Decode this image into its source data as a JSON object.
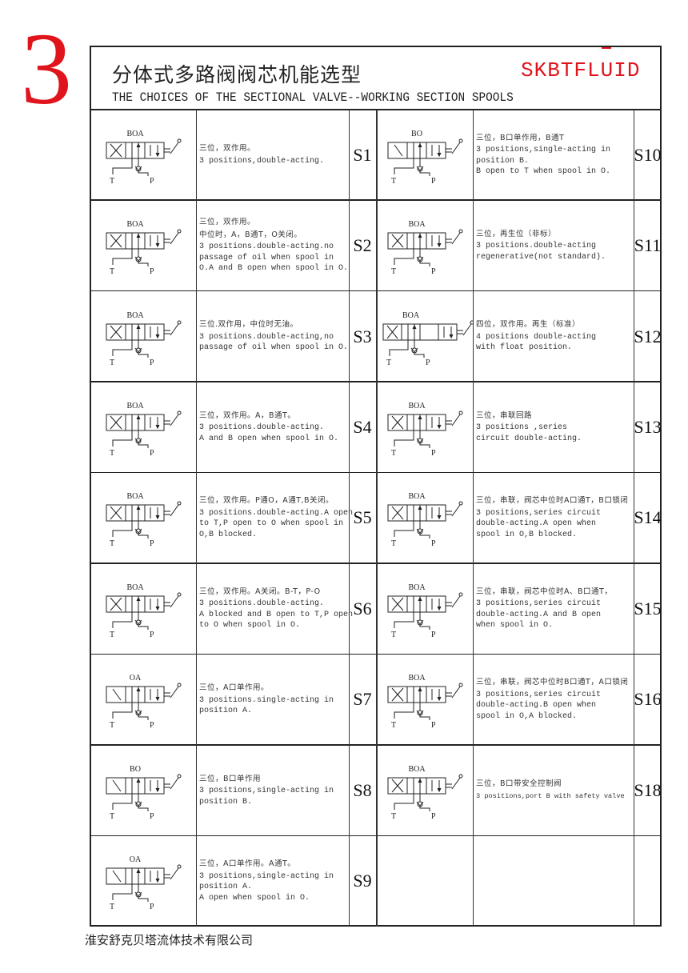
{
  "page_number": "3",
  "header": {
    "title_cn": "分体式多路阀阀芯机能选型",
    "title_en": "THE CHOICES OF THE SECTIONAL VALVE--WORKING SECTION SPOOLS",
    "brand": "SKBTFLUID",
    "brand_color": "#e0141c"
  },
  "left_column": [
    {
      "code": "S1",
      "symbol_label": "BOA",
      "lines": [
        "三位，双作用。",
        "3 positions,double-acting."
      ]
    },
    {
      "code": "S2",
      "symbol_label": "BOA",
      "lines": [
        "三位，双作用。",
        "中位时，A，B通T，O关闭。",
        "3 positions.double-acting.no",
        "passage of oil when spool in",
        "O.A and B open when spool in O."
      ]
    },
    {
      "code": "S3",
      "symbol_label": "BOA",
      "lines": [
        "三位.双作用，中位时无油。",
        "3 positions.double-acting,no",
        "passage of oil when spool in O."
      ]
    },
    {
      "code": "S4",
      "symbol_label": "BOA",
      "lines": [
        "三位，双作用。A，B通T。",
        "3 positions.double-acting.",
        "A and B open when spool in O."
      ]
    },
    {
      "code": "S5",
      "symbol_label": "BOA",
      "lines": [
        "三位，双作用。P通O，A通T,B关闭。",
        "3 positions.double-acting.A open",
        "to T,P open to O when spool in",
        "O,B blocked."
      ]
    },
    {
      "code": "S6",
      "symbol_label": "BOA",
      "lines": [
        "三位，双作用。A关闭。B-T，P-O",
        "3 positions.double-acting.",
        "A blocked and B open to T,P open",
        "to O when spool in O."
      ]
    },
    {
      "code": "S7",
      "symbol_label": "OA",
      "lines": [
        "三位，A口单作用。",
        "3 positions.single-acting in",
        "position A."
      ]
    },
    {
      "code": "S8",
      "symbol_label": "BO",
      "lines": [
        "三位，B口单作用",
        "3 positions,single-acting in",
        "position B."
      ]
    },
    {
      "code": "S9",
      "symbol_label": "OA",
      "lines": [
        "三位，A口单作用。A通T。",
        "3 positions,single-acting in",
        "position A.",
        "A open when spool in O."
      ]
    }
  ],
  "right_column": [
    {
      "code": "S10",
      "symbol_label": "BO",
      "lines": [
        "三位，B口单作用，B通T",
        "3 positions,single-acting in",
        "position B.",
        "B open to T when spool in O."
      ]
    },
    {
      "code": "S11",
      "symbol_label": "BOA",
      "lines": [
        "三位，再生位（非标）",
        "3 positions.double-acting",
        "regenerative(not standard)."
      ]
    },
    {
      "code": "S12",
      "symbol_label": "BOA",
      "lines": [
        "四位，双作用。再生（标准）",
        "4 positions double-acting",
        "with float position."
      ]
    },
    {
      "code": "S13",
      "symbol_label": "BOA",
      "lines": [
        "三位，串联回路",
        "3 positions ,series",
        "circuit double-acting."
      ]
    },
    {
      "code": "S14",
      "symbol_label": "BOA",
      "lines": [
        "三位，串联，阀芯中位时A口通T，B口锁闭",
        "3 positions,series circuit",
        "double-acting.A open when",
        "spool in O,B blocked."
      ]
    },
    {
      "code": "S15",
      "symbol_label": "BOA",
      "lines": [
        "三位，串联，阀芯中位时A、B口通T，",
        "3 positions,series circuit",
        "double-acting.A and B open",
        "when spool in O."
      ]
    },
    {
      "code": "S16",
      "symbol_label": "BOA",
      "lines": [
        "三位，串联，阀芯中位时B口通T，A口锁闭",
        "3 positions,series circuit",
        "double-acting.B open when",
        "spool in O,A blocked."
      ]
    },
    {
      "code": "S18",
      "symbol_label": "BOA",
      "lines": [
        "三位，B口带安全控制阀",
        "3 positions,port B with safety valve"
      ]
    },
    {
      "code": "",
      "symbol_label": "",
      "lines": []
    }
  ],
  "port_labels": {
    "tank": "T",
    "pressure": "P"
  },
  "footer": "淮安舒克贝塔流体技术有限公司"
}
